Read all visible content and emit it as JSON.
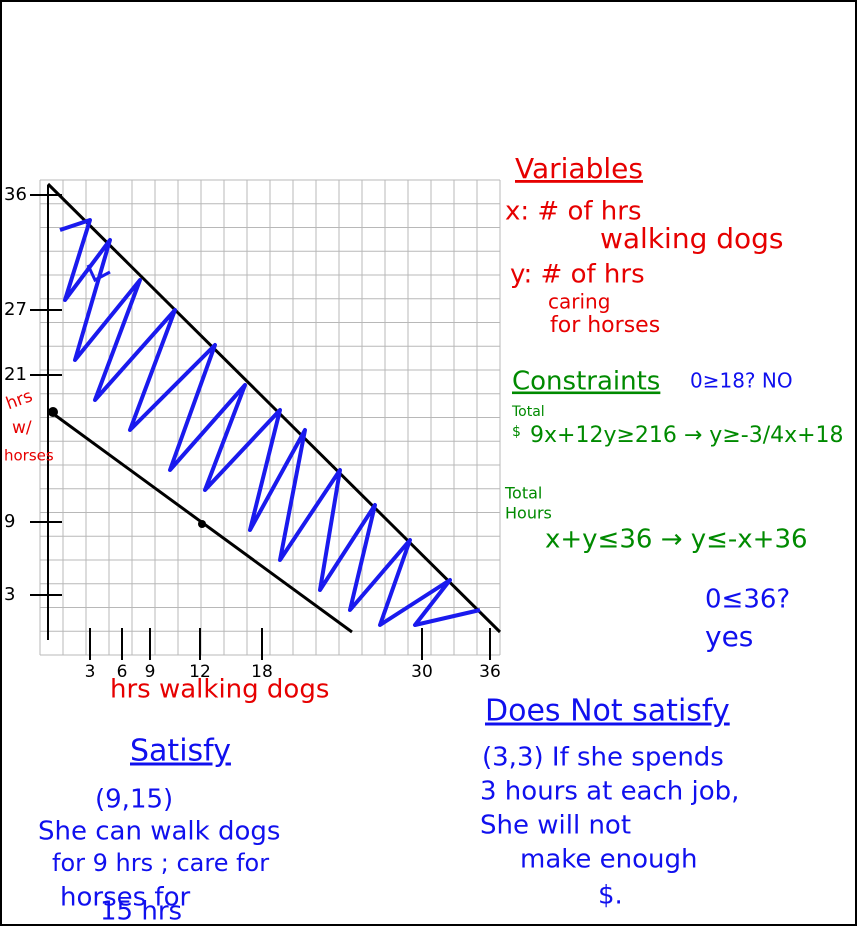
{
  "graph": {
    "y_axis_label": [
      "hrs",
      "w/",
      "horses"
    ],
    "y_ticks": [
      "36",
      "27",
      "21",
      "9",
      "3"
    ],
    "x_ticks": [
      "3",
      "6",
      "9",
      "12",
      "18",
      "30",
      "36"
    ],
    "x_axis_label": "hrs walking dogs"
  },
  "variables": {
    "title": "Variables",
    "x": [
      "x: # of hrs",
      "walking dogs"
    ],
    "y": [
      "y: # of hrs",
      "caring",
      "for horses"
    ]
  },
  "constraints": {
    "title": "Constraints",
    "test1": "0≥18? NO",
    "money_label": [
      "Total",
      "$"
    ],
    "money": "9x+12y≥216 → y≥-3/4x+18",
    "hours_label": [
      "Total",
      "Hours"
    ],
    "hours": "x+y≤36 → y≤-x+36",
    "test2": [
      "0≤36?",
      "yes"
    ]
  },
  "satisfy": {
    "title": "Satisfy",
    "lines": [
      "(9,15)",
      "She can walk dogs",
      "for 9 hrs ; care for",
      "horses for",
      "15 hrs"
    ]
  },
  "not_satisfy": {
    "title": "Does Not satisfy",
    "lines": [
      "(3,3) If she spends",
      "3 hours at each job,",
      "She will not",
      "make enough",
      "$."
    ]
  }
}
